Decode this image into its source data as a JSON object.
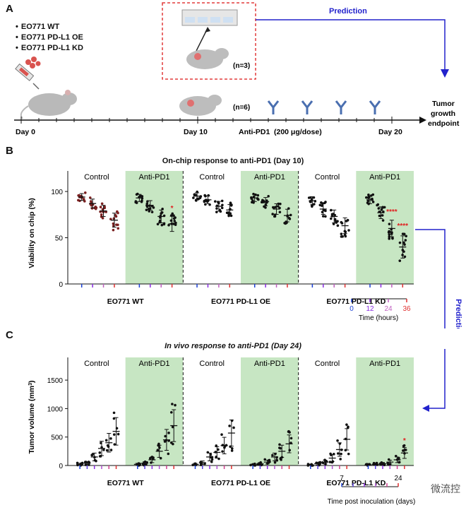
{
  "panels": {
    "a": "A",
    "b": "B",
    "c": "C"
  },
  "legend": [
    "EO771 WT",
    "EO771 PD-L1 OE",
    "EO771 PD-L1 KD"
  ],
  "timeline": {
    "day0": "Day 0",
    "day10": "Day 10",
    "day20": "Day 20",
    "anti_pd1": "Anti-PD1",
    "dose": "(200 μg/dose)",
    "n3": "(n=3)",
    "n6": "(n=6)",
    "prediction": "Prediction",
    "endpoint": [
      "Tumor",
      "growth",
      "endpoint"
    ]
  },
  "colors": {
    "green_panel": "#c7e6c3",
    "prediction_blue": "#2222cc",
    "dashed_red": "#e23b3b",
    "sig_red": "#e02020"
  },
  "chart_b": {
    "title": "On-chip response to anti-PD1 (Day 10)",
    "ylabel": "Viability on chip (%)",
    "yticks": [
      "0",
      "50",
      "100"
    ],
    "ylim": [
      0,
      110
    ],
    "groups": [
      "EO771 WT",
      "EO771 PD-L1 OE",
      "EO771 PD-L1 KD"
    ],
    "cond_labels": [
      "Control",
      "Anti-PD1",
      "Control",
      "Anti-PD1",
      "Control",
      "Anti-PD1"
    ],
    "means": [
      [
        94,
        87,
        79,
        69
      ],
      [
        93,
        85,
        73,
        65
      ],
      [
        95,
        91,
        84,
        80
      ],
      [
        93,
        89,
        81,
        74
      ],
      [
        90,
        81,
        73,
        63
      ],
      [
        91,
        77,
        60,
        40
      ]
    ],
    "stars": [
      {
        "cond": 1,
        "time": 3,
        "text": "*"
      },
      {
        "cond": 5,
        "time": 2,
        "text": "****"
      },
      {
        "cond": 5,
        "time": 3,
        "text": "****"
      }
    ],
    "time_legend": {
      "ticks": [
        "0",
        "12",
        "24",
        "36"
      ],
      "label": "Time (hours)"
    },
    "prediction": "Prediction"
  },
  "chart_c": {
    "title": "In vivo response to anti-PD1 (Day 24)",
    "ylabel": "Tumor volume (mm",
    "ylabel_sup": "3",
    "ylabel_end": ")",
    "yticks": [
      "0",
      "500",
      "1000",
      "1500"
    ],
    "ylim": [
      0,
      1700
    ],
    "groups": [
      "EO771 WT",
      "EO771 PD-L1 OE",
      "EO771 PD-L1 KD"
    ],
    "cond_labels": [
      "Control",
      "Anti-PD1",
      "Control",
      "Anti-PD1",
      "Control",
      "Anti-PD1"
    ],
    "means": [
      [
        20,
        40,
        150,
        300,
        400,
        600
      ],
      [
        20,
        40,
        100,
        250,
        450,
        700
      ],
      [
        20,
        50,
        150,
        230,
        350,
        570
      ],
      [
        10,
        30,
        60,
        150,
        250,
        380
      ],
      [
        10,
        30,
        60,
        130,
        280,
        460
      ],
      [
        10,
        20,
        30,
        60,
        100,
        220
      ]
    ],
    "stars": [
      {
        "cond": 5,
        "time": 5,
        "text": "*"
      }
    ],
    "time_legend": {
      "start": "7",
      "end": "24",
      "label": "Time post inoculation (days)"
    }
  },
  "watermark": "微流控"
}
